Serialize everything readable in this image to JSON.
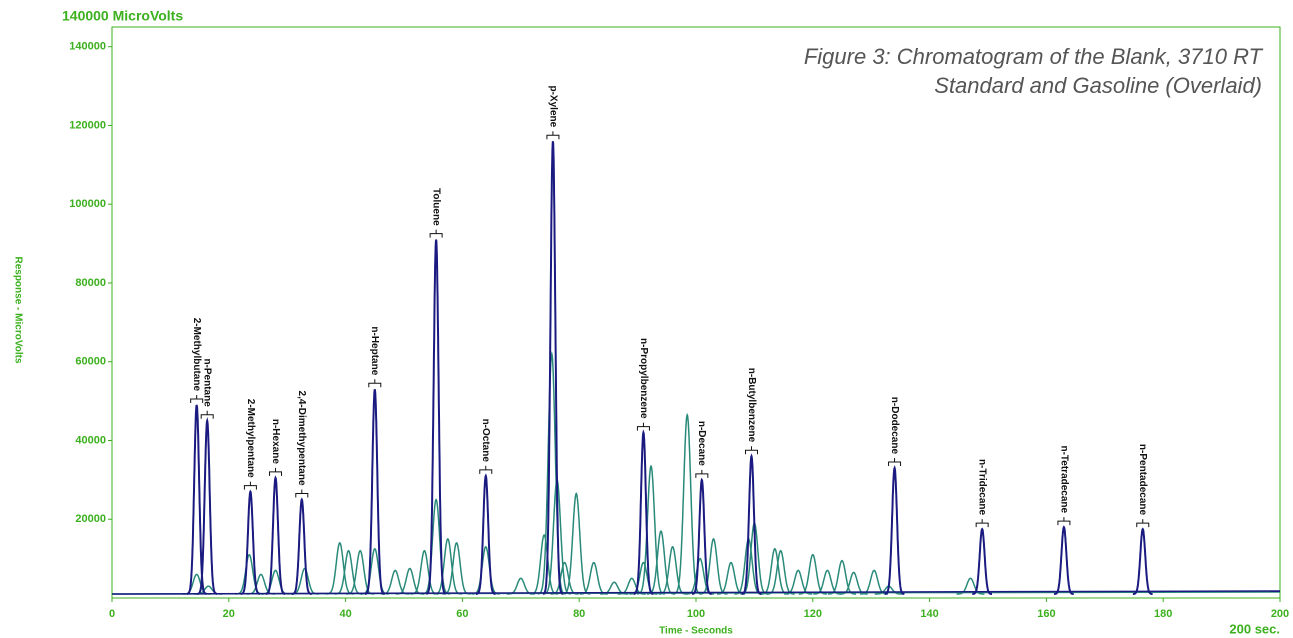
{
  "chart_data": {
    "type": "chromatogram",
    "title_lines": [
      "Figure 3: Chromatogram of the Blank, 3710 RT",
      "Standard and Gasoline (Overlaid)"
    ],
    "scale_label": "140000 MicroVolts",
    "y_axis_label": "Response - MicroVolts",
    "x_axis_label": "Time - Seconds",
    "x_end_label": "200 sec.",
    "xlim": [
      0,
      200
    ],
    "ylim": [
      0,
      145000
    ],
    "xticks": [
      0,
      20,
      40,
      60,
      80,
      100,
      120,
      140,
      160,
      180,
      200
    ],
    "yticks": [
      20000,
      40000,
      60000,
      80000,
      100000,
      120000,
      140000
    ],
    "axis_color": "#3cb01e",
    "series": [
      {
        "color": "#2a8a7a",
        "x": [
          14.5,
          16.5,
          23.5,
          25.5,
          28,
          33,
          39,
          40.5,
          42.5,
          45,
          48.5,
          51,
          53.5,
          55.5,
          57.5,
          59,
          64,
          70,
          74,
          75.3,
          76.2,
          77.5,
          79.5,
          82.5,
          86,
          89,
          91,
          92.3,
          94,
          96,
          98.5,
          100.7,
          103,
          106,
          109,
          110,
          113.5,
          114.5,
          117.5,
          120,
          122.5,
          125,
          127,
          130.5,
          133,
          147
        ],
        "values": [
          6000,
          3000,
          11000,
          6000,
          7000,
          7500,
          14000,
          12000,
          12000,
          12500,
          7000,
          7500,
          12000,
          25000,
          15000,
          14000,
          13000,
          5000,
          16000,
          62000,
          30000,
          9000,
          26500,
          9000,
          4000,
          5000,
          9000,
          33500,
          17000,
          13000,
          46500,
          10000,
          15000,
          9000,
          15000,
          19000,
          12500,
          12000,
          7000,
          11000,
          7000,
          9500,
          6500,
          7000,
          3000,
          5000
        ]
      },
      {
        "color": "#1a1a80",
        "x": [
          14.5,
          16.3,
          23.7,
          28,
          32.5,
          45,
          55.5,
          64,
          75.5,
          91,
          101,
          109.5,
          134,
          149,
          163,
          176.5
        ],
        "values": [
          49000,
          45000,
          27000,
          30500,
          25000,
          53000,
          91000,
          31000,
          116000,
          42000,
          30000,
          36000,
          33000,
          17500,
          18000,
          17500
        ],
        "labels": [
          "2-Methylbutane",
          "n-Pentane",
          "2-Methylpentane",
          "n-Hexane",
          "2,4-Dimethypentane",
          "n-Heptane",
          "Toluene",
          "n-Octane",
          "p-Xylene",
          "n-Propylbenzene",
          "n-Decane",
          "n-Butylbenzene",
          "n-Dodecane",
          "n-Tridecane",
          "n-Tetradecane",
          "n-Pentadecane"
        ]
      }
    ]
  }
}
